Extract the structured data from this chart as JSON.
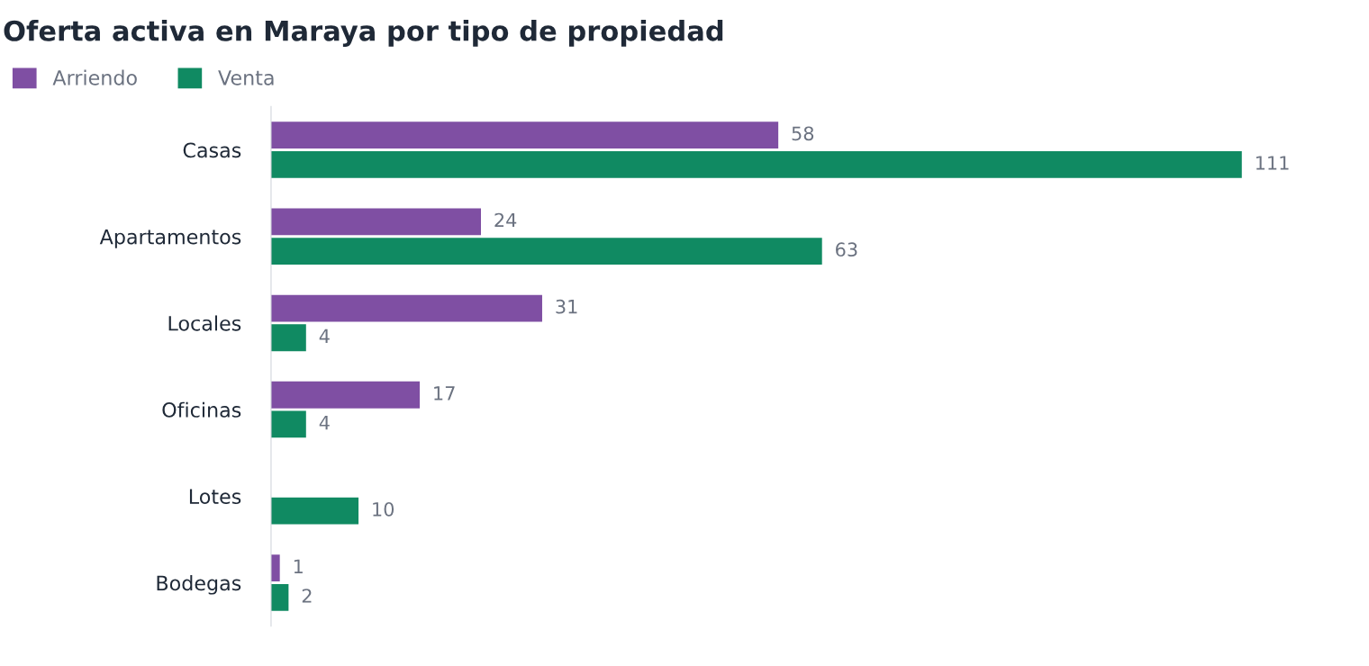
{
  "chart_data": {
    "type": "bar",
    "orientation": "horizontal",
    "title": "Oferta activa en Maraya por tipo de propiedad",
    "categories": [
      "Casas",
      "Apartamentos",
      "Locales",
      "Oficinas",
      "Lotes",
      "Bodegas"
    ],
    "series": [
      {
        "name": "Arriendo",
        "color": "#7f4fa3",
        "values": [
          58,
          24,
          31,
          17,
          null,
          1
        ]
      },
      {
        "name": "Venta",
        "color": "#108a62",
        "values": [
          111,
          63,
          4,
          4,
          10,
          2
        ]
      }
    ],
    "data_labels": true,
    "legend": "top left",
    "grid": false,
    "tick_labels": "y"
  }
}
